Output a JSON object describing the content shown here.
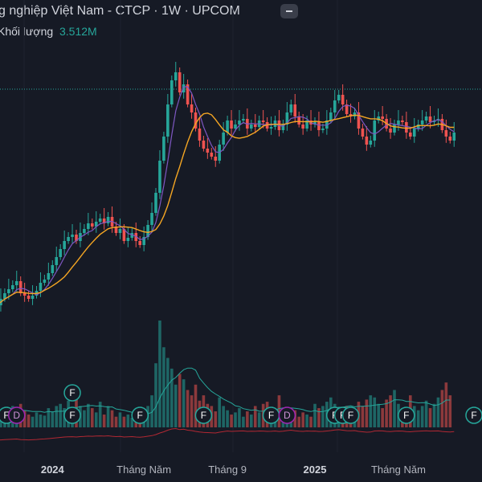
{
  "header": {
    "title": "g nghiệp Việt Nam - CTCP · 1W · UPCOM",
    "volume_label": "Khối lượng",
    "volume_value": "3.512M"
  },
  "colors": {
    "up": "#26a69a",
    "down": "#ef5350",
    "ma_fast": "#7e57c2",
    "ma_slow": "#f5a623",
    "vol_ma": "#26a69a",
    "lower_line": "#b22833",
    "price_line": "#26a69a",
    "background": "#161a25"
  },
  "chart_data": {
    "type": "candlestick",
    "y_scale": "relative (no price axis shown)",
    "ohlc_mid": [
      380,
      372,
      365,
      360,
      355,
      350,
      365,
      368,
      372,
      368,
      362,
      352,
      348,
      340,
      330,
      320,
      310,
      300,
      295,
      292,
      300,
      290,
      285,
      278,
      282,
      276,
      272,
      278,
      270,
      282,
      290,
      285,
      300,
      296,
      290,
      300,
      305,
      295,
      280,
      265,
      240,
      200,
      170,
      130,
      100,
      90,
      115,
      105,
      130,
      140,
      160,
      175,
      185,
      190,
      195,
      200,
      180,
      165,
      150,
      160,
      155,
      150,
      148,
      160,
      155,
      158,
      150,
      152,
      160,
      158,
      150,
      162,
      155,
      140,
      130,
      145,
      155,
      160,
      150,
      155,
      152,
      162,
      160,
      150,
      140,
      125,
      118,
      130,
      142,
      145,
      140,
      160,
      170,
      180,
      175,
      150,
      145,
      148,
      160,
      165,
      155,
      150,
      152,
      165,
      170,
      160,
      155,
      150,
      145,
      152,
      150,
      148,
      162,
      170,
      175,
      165
    ],
    "volume_rel": [
      0.15,
      0.12,
      0.18,
      0.1,
      0.2,
      0.14,
      0.22,
      0.16,
      0.12,
      0.1,
      0.14,
      0.12,
      0.11,
      0.18,
      0.15,
      0.2,
      0.22,
      0.18,
      0.25,
      0.14,
      0.3,
      0.2,
      0.16,
      0.22,
      0.18,
      0.14,
      0.24,
      0.12,
      0.2,
      0.16,
      0.1,
      0.14,
      0.1,
      0.12,
      0.09,
      0.14,
      0.1,
      0.12,
      0.2,
      0.3,
      0.6,
      1.0,
      0.75,
      0.65,
      0.55,
      0.4,
      0.5,
      0.45,
      0.35,
      0.3,
      0.4,
      0.25,
      0.3,
      0.22,
      0.2,
      0.15,
      0.28,
      0.2,
      0.16,
      0.12,
      0.14,
      0.18,
      0.1,
      0.15,
      0.12,
      0.2,
      0.14,
      0.22,
      0.24,
      0.16,
      0.12,
      0.3,
      0.18,
      0.14,
      0.12,
      0.16,
      0.1,
      0.14,
      0.12,
      0.1,
      0.22,
      0.18,
      0.2,
      0.24,
      0.28,
      0.22,
      0.18,
      0.14,
      0.2,
      0.16,
      0.12,
      0.24,
      0.2,
      0.26,
      0.3,
      0.28,
      0.22,
      0.18,
      0.26,
      0.3,
      0.35,
      0.22,
      0.18,
      0.14,
      0.3,
      0.2,
      0.16,
      0.2,
      0.25,
      0.18,
      0.22,
      0.28,
      0.35,
      0.42,
      0.3
    ],
    "x_ticks": [
      {
        "label": "2024",
        "bold": true,
        "idx": 14
      },
      {
        "label": "Tháng Năm",
        "bold": false,
        "idx": 37
      },
      {
        "label": "Tháng 9",
        "bold": false,
        "idx": 58
      },
      {
        "label": "2025",
        "bold": true,
        "idx": 80
      },
      {
        "label": "Tháng Năm",
        "bold": false,
        "idx": 101
      }
    ],
    "event_markers": [
      {
        "label": "F",
        "row": 0,
        "idx": 1,
        "color": "#26a69a"
      },
      {
        "label": "D",
        "row": 0,
        "idx": 5,
        "color": "#9c27b0"
      },
      {
        "label": "F",
        "row": 0,
        "idx": 19,
        "color": "#26a69a"
      },
      {
        "label": "F",
        "row": 1,
        "idx": 19,
        "color": "#26a69a"
      },
      {
        "label": "F",
        "row": 0,
        "idx": 36,
        "color": "#26a69a"
      },
      {
        "label": "F",
        "row": 0,
        "idx": 52,
        "color": "#26a69a"
      },
      {
        "label": "F",
        "row": 0,
        "idx": 69,
        "color": "#26a69a"
      },
      {
        "label": "D",
        "row": 0,
        "idx": 73,
        "color": "#9c27b0"
      },
      {
        "label": "F",
        "row": 0,
        "idx": 85,
        "color": "#26a69a"
      },
      {
        "label": "F",
        "row": 0,
        "idx": 87,
        "color": "#26a69a"
      },
      {
        "label": "F",
        "row": 0,
        "idx": 89,
        "color": "#26a69a"
      },
      {
        "label": "F",
        "row": 0,
        "idx": 103,
        "color": "#26a69a"
      },
      {
        "label": "F",
        "row": 0,
        "idx": 120,
        "color": "#26a69a"
      }
    ]
  }
}
